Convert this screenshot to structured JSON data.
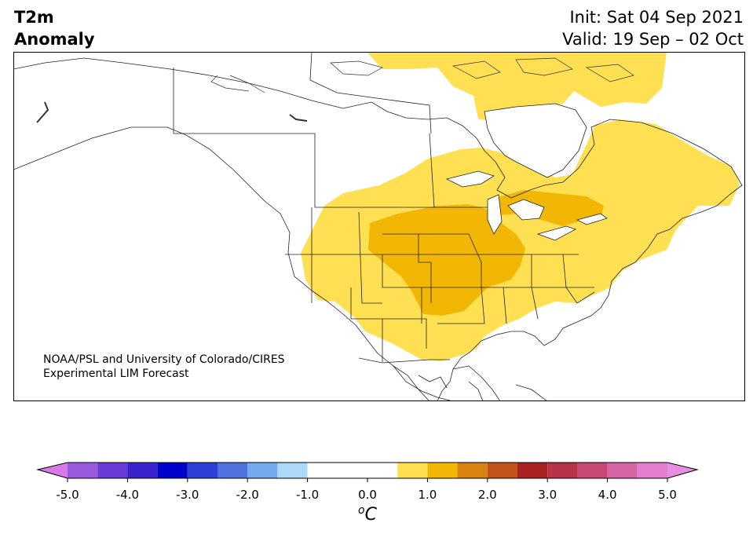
{
  "title": {
    "left_line1": "T2m",
    "left_line2": "Anomaly",
    "init": "Init: Sat 04 Sep 2021",
    "valid": "Valid: 19 Sep – 02 Oct"
  },
  "credit": {
    "line1": "NOAA/PSL and University of Colorado/CIRES",
    "line2": "Experimental LIM Forecast"
  },
  "colorbar": {
    "unit_base": "o",
    "unit_letter": "C",
    "ticks": [
      "-5.0",
      "-4.0",
      "-3.0",
      "-2.0",
      "-1.0",
      "0.0",
      "1.0",
      "2.0",
      "3.0",
      "4.0",
      "5.0"
    ],
    "levels": [
      -5.0,
      -4.5,
      -4.0,
      -3.5,
      -3.0,
      -2.5,
      -2.0,
      -1.5,
      -1.0,
      -0.5,
      0.5,
      1.0,
      1.5,
      2.0,
      2.5,
      3.0,
      3.5,
      4.0,
      4.5,
      5.0
    ],
    "colors": [
      "#9b59e0",
      "#6a3ad8",
      "#3b22cf",
      "#0000cc",
      "#2a3fd6",
      "#4f72e0",
      "#74aaee",
      "#aed8f8",
      "#ffffff",
      "#ffffff",
      "#ffe052",
      "#f2b705",
      "#d9820f",
      "#c4521b",
      "#a82222",
      "#b8324a",
      "#c84a74",
      "#d665a6",
      "#e47dd0"
    ],
    "low_extend_color": "#d87ae8",
    "high_extend_color": "#e68ee0"
  },
  "map": {
    "anomaly_colors": {
      "weak": "#ffe052",
      "moderate": "#f2b705"
    }
  }
}
